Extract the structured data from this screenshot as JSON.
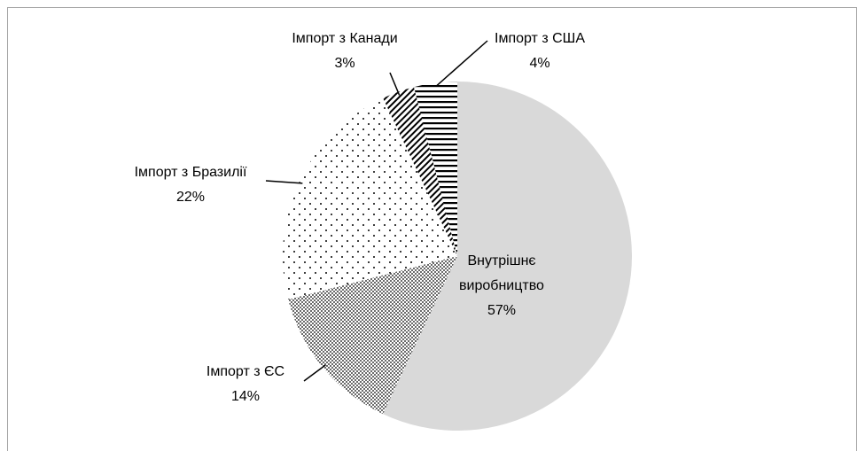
{
  "chart_data": {
    "type": "pie",
    "categories": [
      "Внутрішнє виробництво",
      "Імпорт з ЄС",
      "Імпорт з Бразилії",
      "Імпорт з Канади",
      "Імпорт з США"
    ],
    "values": [
      57,
      14,
      22,
      3,
      4
    ],
    "value_labels": [
      "57%",
      "14%",
      "22%",
      "3%",
      "4%"
    ],
    "colors": [
      "#d9d9d9",
      "#000000",
      "#000000",
      "#000000",
      "#000000"
    ]
  }
}
